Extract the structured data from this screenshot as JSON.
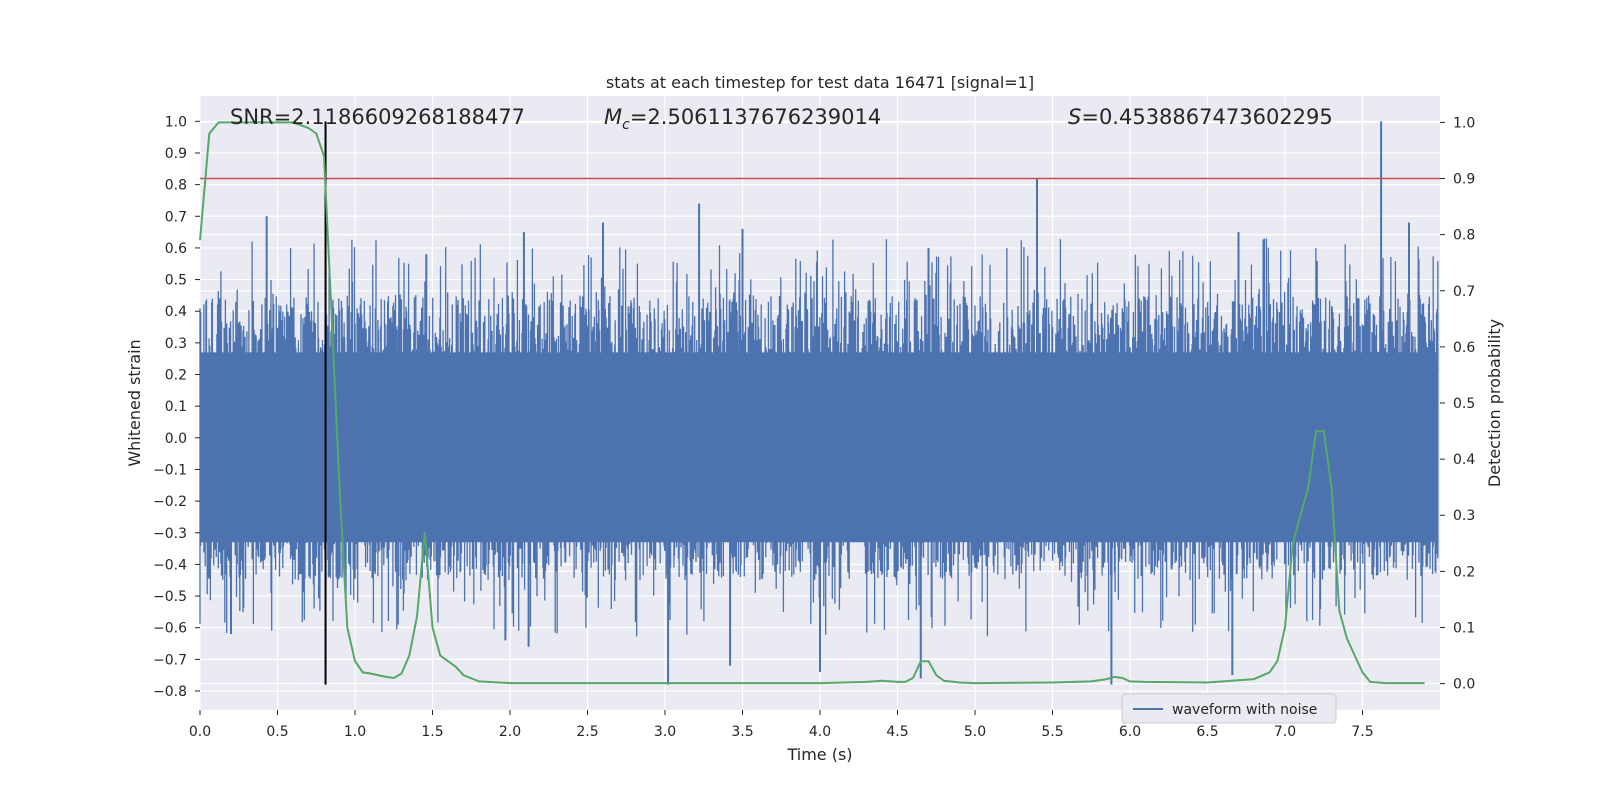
{
  "chart_data": {
    "type": "line",
    "title": "stats at each timestep for test data 16471 [signal=1]",
    "xlabel": "Time (s)",
    "ylabel": "Whitened strain",
    "y2label": "Detection probability",
    "xlim": [
      0.0,
      8.0
    ],
    "ylim": [
      -0.86,
      1.08
    ],
    "y2lim": [
      -0.047,
      1.047
    ],
    "x_ticks": [
      "0.0",
      "0.5",
      "1.0",
      "1.5",
      "2.0",
      "2.5",
      "3.0",
      "3.5",
      "4.0",
      "4.5",
      "5.0",
      "5.5",
      "6.0",
      "6.5",
      "7.0",
      "7.5"
    ],
    "x_tick_values": [
      0.0,
      0.5,
      1.0,
      1.5,
      2.0,
      2.5,
      3.0,
      3.5,
      4.0,
      4.5,
      5.0,
      5.5,
      6.0,
      6.5,
      7.0,
      7.5
    ],
    "y_ticks": [
      "1.0",
      "0.9",
      "0.8",
      "0.7",
      "0.6",
      "0.5",
      "0.4",
      "0.3",
      "0.2",
      "0.1",
      "0.0",
      "−0.1",
      "−0.2",
      "−0.3",
      "−0.4",
      "−0.5",
      "−0.6",
      "−0.7",
      "−0.8"
    ],
    "y_tick_values": [
      1.0,
      0.9,
      0.8,
      0.7,
      0.6,
      0.5,
      0.4,
      0.3,
      0.2,
      0.1,
      0.0,
      -0.1,
      -0.2,
      -0.3,
      -0.4,
      -0.5,
      -0.6,
      -0.7,
      -0.8
    ],
    "y2_ticks": [
      "1.0",
      "0.9",
      "0.8",
      "0.7",
      "0.6",
      "0.5",
      "0.4",
      "0.3",
      "0.2",
      "0.1",
      "0.0"
    ],
    "y2_tick_values": [
      1.0,
      0.9,
      0.8,
      0.7,
      0.6,
      0.5,
      0.4,
      0.3,
      0.2,
      0.1,
      0.0
    ],
    "grid": true,
    "legend_position": "lower-right",
    "annotations": {
      "snr": "SNR=2.1186609268188477",
      "mc_symbol": "M",
      "mc_subscript": "c",
      "mc_value": "=2.5061137676239014",
      "s_symbol": "S",
      "s_value": "=0.4538867473602295"
    },
    "series": [
      {
        "name": "waveform with noise",
        "axis": "left",
        "style": "dense-noise",
        "color": "#4c72b0",
        "dense_envelope": [
          -0.45,
          0.45
        ],
        "spikes": [
          {
            "x": 0.43,
            "y": 0.7
          },
          {
            "x": 1.46,
            "y": 0.58
          },
          {
            "x": 2.09,
            "y": 0.65
          },
          {
            "x": 2.6,
            "y": 0.68
          },
          {
            "x": 3.22,
            "y": 0.74
          },
          {
            "x": 3.5,
            "y": 0.66
          },
          {
            "x": 4.7,
            "y": 0.6
          },
          {
            "x": 5.4,
            "y": 0.82
          },
          {
            "x": 6.7,
            "y": 0.65
          },
          {
            "x": 7.62,
            "y": 1.0
          },
          {
            "x": 7.8,
            "y": 0.68
          },
          {
            "x": 3.02,
            "y": -0.78
          },
          {
            "x": 3.42,
            "y": -0.72
          },
          {
            "x": 4.0,
            "y": -0.74
          },
          {
            "x": 5.88,
            "y": -0.78
          },
          {
            "x": 6.66,
            "y": -0.75
          },
          {
            "x": 4.65,
            "y": -0.76
          },
          {
            "x": 0.2,
            "y": -0.62
          },
          {
            "x": 1.97,
            "y": -0.64
          },
          {
            "x": 2.12,
            "y": -0.66
          }
        ]
      },
      {
        "name": "",
        "axis": "right",
        "color": "#55a868",
        "x": [
          0.0,
          0.06,
          0.12,
          0.2,
          0.3,
          0.4,
          0.5,
          0.6,
          0.7,
          0.75,
          0.8,
          0.85,
          0.9,
          0.95,
          1.0,
          1.05,
          1.1,
          1.2,
          1.25,
          1.3,
          1.35,
          1.4,
          1.45,
          1.5,
          1.55,
          1.6,
          1.65,
          1.7,
          1.8,
          2.0,
          2.5,
          3.0,
          3.5,
          4.0,
          4.3,
          4.4,
          4.5,
          4.55,
          4.6,
          4.65,
          4.7,
          4.75,
          4.8,
          4.9,
          5.0,
          5.5,
          5.75,
          5.85,
          5.9,
          5.95,
          6.0,
          6.1,
          6.5,
          6.8,
          6.9,
          6.95,
          7.0,
          7.05,
          7.1,
          7.15,
          7.2,
          7.25,
          7.3,
          7.35,
          7.4,
          7.5,
          7.55,
          7.65,
          7.9
        ],
        "y": [
          0.79,
          0.98,
          1.0,
          1.0,
          1.0,
          1.0,
          1.0,
          1.0,
          0.99,
          0.98,
          0.94,
          0.65,
          0.35,
          0.1,
          0.04,
          0.02,
          0.018,
          0.012,
          0.01,
          0.018,
          0.05,
          0.12,
          0.27,
          0.1,
          0.05,
          0.04,
          0.03,
          0.015,
          0.004,
          0.001,
          0.001,
          0.001,
          0.001,
          0.001,
          0.003,
          0.005,
          0.003,
          0.003,
          0.01,
          0.04,
          0.04,
          0.015,
          0.005,
          0.002,
          0.001,
          0.002,
          0.004,
          0.008,
          0.012,
          0.01,
          0.004,
          0.003,
          0.002,
          0.008,
          0.02,
          0.04,
          0.1,
          0.25,
          0.3,
          0.35,
          0.45,
          0.45,
          0.35,
          0.13,
          0.08,
          0.02,
          0.003,
          0.001,
          0.001
        ]
      },
      {
        "name": "",
        "axis": "right",
        "color": "#c44e52",
        "style": "hline",
        "y": 0.9
      },
      {
        "name": "",
        "axis": "left",
        "color": "#000000",
        "style": "vline",
        "x": 0.81,
        "ymin": -0.78,
        "ymax": 1.0
      }
    ]
  }
}
